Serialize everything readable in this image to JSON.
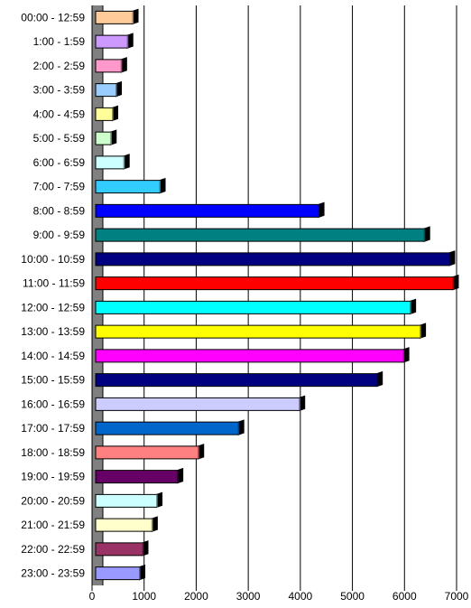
{
  "chart_data": {
    "type": "bar",
    "orientation": "horizontal",
    "style": "3d",
    "title": "",
    "xlabel": "",
    "ylabel": "",
    "xlim": [
      0,
      7000
    ],
    "xticks": [
      "0",
      "1000",
      "2000",
      "3000",
      "4000",
      "5000",
      "6000",
      "7000"
    ],
    "grid": true,
    "legend": "none",
    "categories": [
      "00:00 - 12:59",
      "1:00 - 1:59",
      "2:00 - 2:59",
      "3:00 - 3:59",
      "4:00 - 4:59",
      "5:00 - 5:59",
      "6:00 - 6:59",
      "7:00 - 7:59",
      "8:00 - 8:59",
      "9:00 - 9:59",
      "10:00 - 10:59",
      "11:00 - 11:59",
      "12:00 - 12:59",
      "13:00 - 13:59",
      "14:00 - 14:59",
      "15:00 - 15:59",
      "16:00 - 16:59",
      "17:00 - 17:59",
      "18:00 - 18:59",
      "19:00 - 19:59",
      "20:00 - 20:59",
      "21:00 - 21:59",
      "22:00 - 22:59",
      "23:00 - 23:59"
    ],
    "values": [
      780,
      680,
      560,
      460,
      390,
      360,
      610,
      1300,
      4350,
      6380,
      6860,
      6930,
      6110,
      6300,
      5980,
      5470,
      3980,
      2810,
      2040,
      1640,
      1240,
      1150,
      970,
      910
    ],
    "colors": [
      "#ffcc99",
      "#cc99ff",
      "#ff99cc",
      "#99ccff",
      "#ffff99",
      "#ccffcc",
      "#ccffff",
      "#33ccff",
      "#0000ff",
      "#008080",
      "#000080",
      "#ff0000",
      "#00ffff",
      "#ffff00",
      "#ff00ff",
      "#000080",
      "#ccccff",
      "#0066cc",
      "#ff8080",
      "#660066",
      "#ccffff",
      "#ffffcc",
      "#993366",
      "#9999ff"
    ]
  }
}
